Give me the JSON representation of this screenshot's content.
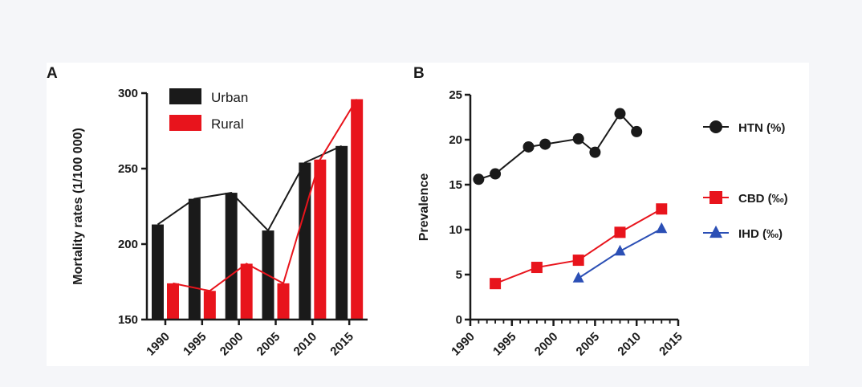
{
  "chart_data": [
    {
      "panel": "A",
      "type": "bar",
      "ylabel": "Mortality rates (1/100 000)",
      "ylim": [
        150,
        300
      ],
      "yticks": [
        150,
        200,
        250,
        300
      ],
      "categories": [
        "1990",
        "1995",
        "2000",
        "2005",
        "2010",
        "2015"
      ],
      "legend_position": "top-left",
      "series": [
        {
          "name": "Urban",
          "color": "#1a1a1a",
          "values": [
            213,
            230,
            234,
            209,
            254,
            265
          ]
        },
        {
          "name": "Rural",
          "color": "#e8141c",
          "values": [
            174,
            169,
            187,
            174,
            256,
            296
          ]
        }
      ]
    },
    {
      "panel": "B",
      "type": "line",
      "ylabel": "Prevalence",
      "ylim": [
        0,
        25
      ],
      "yticks": [
        0,
        5,
        10,
        15,
        20,
        25
      ],
      "xlim": [
        1990,
        2015
      ],
      "xticks": [
        "1990",
        "1995",
        "2000",
        "2005",
        "2010",
        "2015"
      ],
      "legend_position": "right",
      "series": [
        {
          "name": "HTN (%)",
          "color": "#1a1a1a",
          "marker": "circle",
          "x": [
            1991,
            1993,
            1997,
            1999,
            2003,
            2005,
            2008,
            2010
          ],
          "y": [
            15.6,
            16.2,
            19.2,
            19.5,
            20.1,
            18.6,
            22.9,
            20.9
          ]
        },
        {
          "name": "CBD (‰)",
          "color": "#e8141c",
          "marker": "square",
          "x": [
            1993,
            1998,
            2003,
            2008,
            2013
          ],
          "y": [
            4.0,
            5.8,
            6.6,
            9.7,
            12.3
          ]
        },
        {
          "name": "IHD (‰)",
          "color": "#2b4fb5",
          "marker": "triangle",
          "x": [
            2003,
            2008,
            2013
          ],
          "y": [
            4.6,
            7.6,
            10.1
          ]
        }
      ]
    }
  ]
}
